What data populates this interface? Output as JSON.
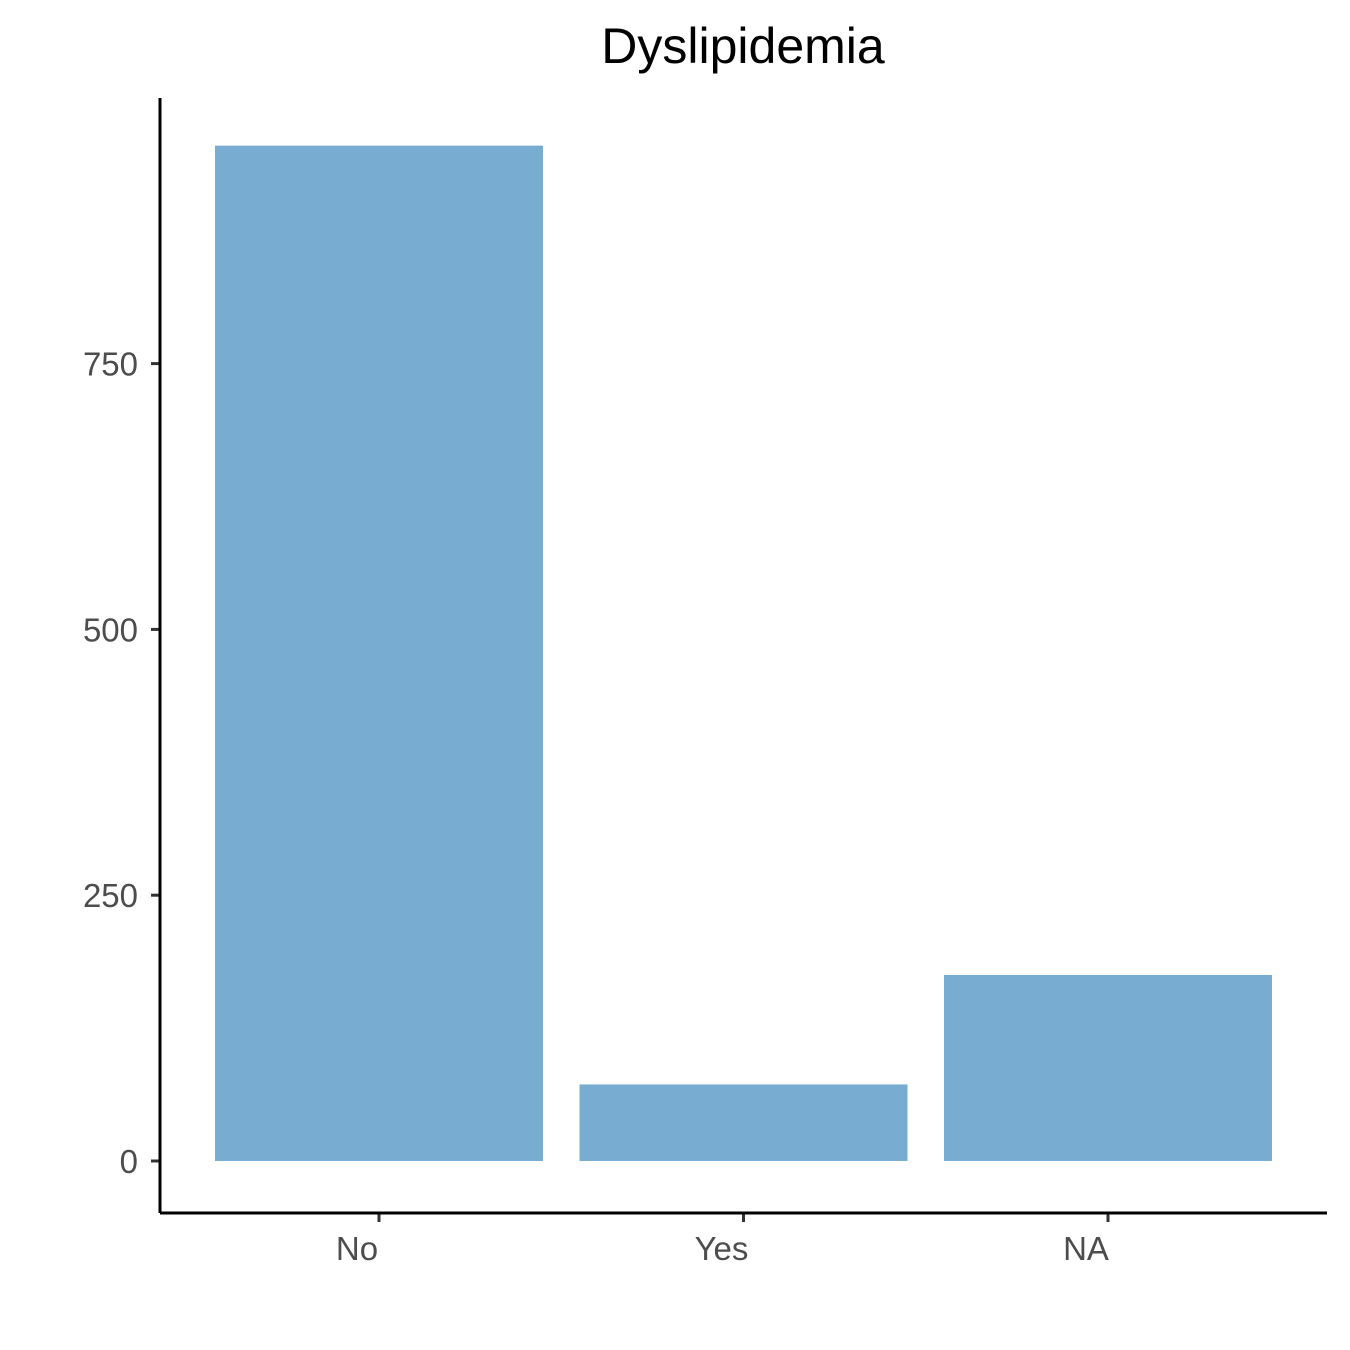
{
  "chart_data": {
    "type": "bar",
    "title": "Dyslipidemia",
    "xlabel": "",
    "ylabel": "",
    "categories": [
      "No",
      "Yes",
      "NA"
    ],
    "values": [
      955,
      72,
      175
    ],
    "ylim": [
      -45,
      1000
    ],
    "yticks": [
      0,
      250,
      500,
      750
    ],
    "ytick_labels": [
      "0",
      "250",
      "500",
      "750"
    ],
    "grid": false,
    "legend": "none",
    "bar_color": "#78acd1"
  }
}
